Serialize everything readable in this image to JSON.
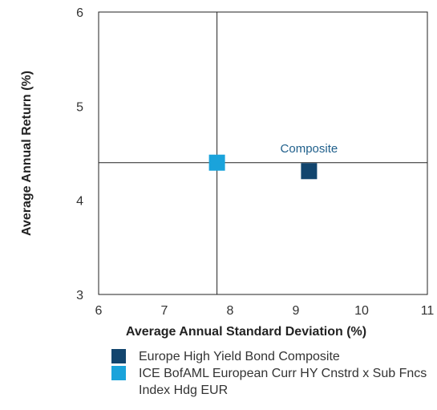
{
  "chart_data": {
    "type": "scatter",
    "xlabel": "Average Annual Standard Deviation (%)",
    "ylabel": "Average Annual Return (%)",
    "xlim": [
      6,
      11
    ],
    "ylim": [
      3,
      6
    ],
    "xticks": [
      6,
      7,
      8,
      9,
      10,
      11
    ],
    "yticks": [
      3,
      4,
      5,
      6
    ],
    "crosshair": {
      "x": 7.8,
      "y": 4.4
    },
    "grid": false,
    "legend_position": "bottom",
    "series": [
      {
        "name": "Europe High Yield Bond Composite",
        "color": "#12456e",
        "x": 9.2,
        "y": 4.31
      },
      {
        "name": "ICE BofAML European Curr HY Cnstrd x Sub Fncs Index Hdg EUR",
        "color": "#1aa3db",
        "x": 7.8,
        "y": 4.4
      }
    ],
    "annotations": [
      {
        "text": "Composite",
        "color": "#1f5f8b",
        "x": 9.2,
        "y": 4.55
      }
    ]
  },
  "legend": [
    {
      "label": "Europe High Yield Bond Composite"
    },
    {
      "label": "ICE BofAML European Curr HY Cnstrd x Sub Fncs Index Hdg EUR"
    }
  ]
}
